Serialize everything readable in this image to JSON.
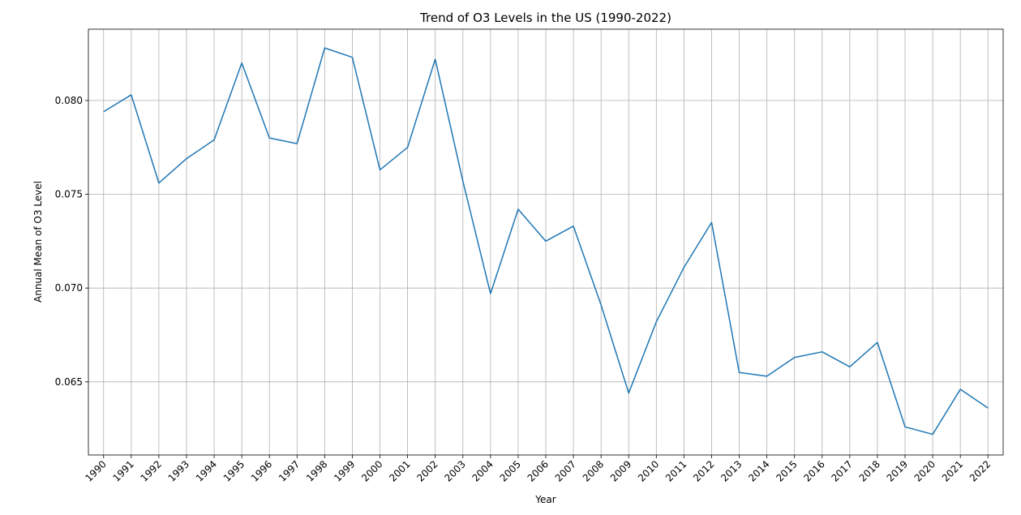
{
  "chart_data": {
    "type": "line",
    "title": "Trend of O3 Levels in the US (1990-2022)",
    "xlabel": "Year",
    "ylabel": "Annual Mean of O3 Level",
    "x": [
      1990,
      1991,
      1992,
      1993,
      1994,
      1995,
      1996,
      1997,
      1998,
      1999,
      2000,
      2001,
      2002,
      2003,
      2004,
      2005,
      2006,
      2007,
      2008,
      2009,
      2010,
      2011,
      2012,
      2013,
      2014,
      2015,
      2016,
      2017,
      2018,
      2019,
      2020,
      2021,
      2022
    ],
    "series": [
      {
        "values": [
          0.0794,
          0.0803,
          0.0756,
          0.0769,
          0.0779,
          0.082,
          0.078,
          0.0777,
          0.0828,
          0.0823,
          0.0763,
          0.0775,
          0.0822,
          0.0757,
          0.0697,
          0.0742,
          0.0725,
          0.0733,
          0.0691,
          0.0644,
          0.0682,
          0.0711,
          0.0735,
          0.0655,
          0.0653,
          0.0663,
          0.0666,
          0.0658,
          0.0671,
          0.0626,
          0.0622,
          0.0646,
          0.0636
        ],
        "color": "#1f77b4"
      }
    ],
    "yticks": [
      "0.065",
      "0.070",
      "0.075",
      "0.080"
    ],
    "yticks_values": [
      0.065,
      0.07,
      0.075,
      0.08
    ],
    "ylim": [
      0.0611,
      0.0838
    ],
    "xlim": [
      1989.45,
      2022.55
    ],
    "grid": true,
    "x_tick_rotation": 45
  }
}
